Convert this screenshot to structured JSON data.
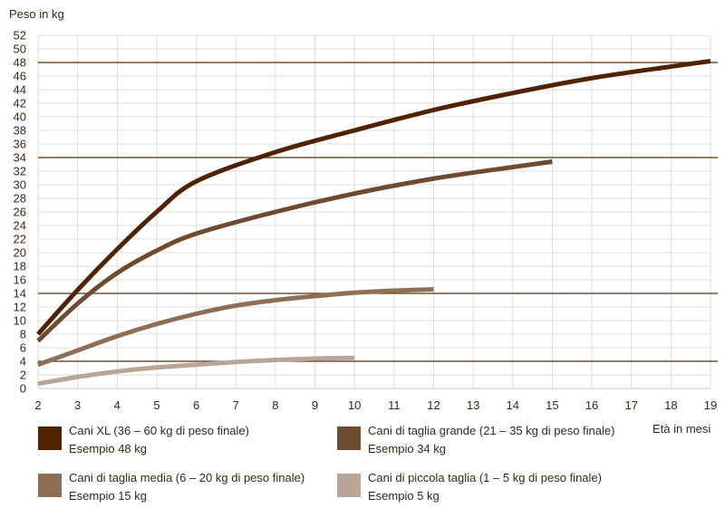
{
  "chart_data": {
    "type": "line",
    "ylabel": "Peso in kg",
    "xlabel": "Età in mesi",
    "xlim": [
      2,
      19
    ],
    "ylim": [
      0,
      52
    ],
    "x_ticks": [
      2,
      3,
      4,
      5,
      6,
      7,
      8,
      9,
      10,
      11,
      12,
      13,
      14,
      15,
      16,
      17,
      18,
      19
    ],
    "y_ticks": [
      0,
      2,
      4,
      6,
      8,
      10,
      12,
      14,
      16,
      18,
      20,
      22,
      24,
      26,
      28,
      30,
      32,
      34,
      36,
      38,
      40,
      42,
      44,
      46,
      48,
      50,
      52
    ],
    "grid": true,
    "reference_lines": [
      48,
      34,
      14,
      4
    ],
    "legend_position": "bottom",
    "series": [
      {
        "name": "Cani XL (36 – 60 kg di peso finale)",
        "example": "Esempio 48 kg",
        "color": "#4f2300",
        "x": [
          2,
          3,
          4,
          5,
          6,
          8,
          10,
          12,
          14,
          16,
          18,
          19
        ],
        "y": [
          8,
          14.5,
          20.5,
          26,
          30.5,
          34.8,
          38,
          41,
          43.5,
          45.7,
          47.4,
          48.2
        ]
      },
      {
        "name": "Cani di taglia grande (21 – 35 kg di peso finale)",
        "example": "Esempio 34 kg",
        "color": "#6e4a2e",
        "x": [
          2,
          3,
          4,
          5,
          6,
          8,
          10,
          12,
          14,
          15
        ],
        "y": [
          7,
          12.5,
          17,
          20.3,
          22.8,
          26,
          28.7,
          30.9,
          32.6,
          33.4
        ]
      },
      {
        "name": "Cani di taglia media (6 – 20 kg di peso finale)",
        "example": "Esempio 15 kg",
        "color": "#8e6f56",
        "x": [
          2,
          3,
          4,
          5,
          6,
          7,
          8,
          9,
          10,
          11,
          12
        ],
        "y": [
          3.5,
          5.6,
          7.7,
          9.5,
          11,
          12.2,
          13,
          13.6,
          14.1,
          14.4,
          14.6
        ]
      },
      {
        "name": "Cani di piccola taglia (1 – 5 kg di peso finale)",
        "example": "Esempio 5 kg",
        "color": "#b9a596",
        "x": [
          2,
          3,
          4,
          5,
          6,
          7,
          8,
          9,
          10
        ],
        "y": [
          0.7,
          1.7,
          2.5,
          3.1,
          3.5,
          3.9,
          4.2,
          4.4,
          4.5
        ]
      }
    ]
  }
}
